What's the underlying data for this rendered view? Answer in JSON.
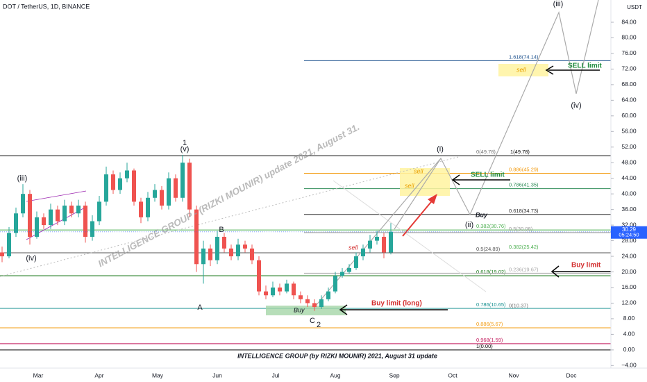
{
  "chart_data": {
    "type": "candlestick",
    "title": "DOT / TetherUS, 1D, BINANCE",
    "axis_unit": "USDT",
    "ylim": [
      -4.3,
      89.7
    ],
    "yticks": [
      {
        "value": -4,
        "label": "−4.00"
      },
      {
        "value": 0,
        "label": "0.00"
      },
      {
        "value": 4,
        "label": "4.00"
      },
      {
        "value": 8,
        "label": "8.00"
      },
      {
        "value": 12,
        "label": "12.00"
      },
      {
        "value": 16,
        "label": "16.00"
      },
      {
        "value": 20,
        "label": "20.00"
      },
      {
        "value": 24,
        "label": "24.00"
      },
      {
        "value": 28,
        "label": "28.00"
      },
      {
        "value": 32,
        "label": "32.00"
      },
      {
        "value": 36,
        "label": "36.00"
      },
      {
        "value": 40,
        "label": "40.00"
      },
      {
        "value": 44,
        "label": "44.00"
      },
      {
        "value": 48,
        "label": "48.00"
      },
      {
        "value": 52,
        "label": "52.00"
      },
      {
        "value": 56,
        "label": "56.00"
      },
      {
        "value": 60,
        "label": "60.00"
      },
      {
        "value": 64,
        "label": "64.00"
      },
      {
        "value": 68,
        "label": "68.00"
      },
      {
        "value": 72,
        "label": "72.00"
      },
      {
        "value": 76,
        "label": "76.00"
      },
      {
        "value": 80,
        "label": "80.00"
      },
      {
        "value": 84,
        "label": "84.00"
      }
    ],
    "months": [
      "Mar",
      "Apr",
      "May",
      "Jun",
      "Jul",
      "Aug",
      "Sep",
      "Oct",
      "Nov",
      "Dec"
    ],
    "up_color": "#26a69a",
    "down_color": "#ef5350",
    "open": [
      25,
      24,
      30,
      35,
      40,
      29,
      34,
      32,
      36,
      33,
      37,
      35,
      37,
      29,
      33,
      38,
      45,
      41,
      44,
      46,
      38,
      34,
      39,
      41,
      37,
      44,
      39,
      48,
      36,
      22,
      26,
      23,
      29,
      26,
      24,
      27,
      26,
      23,
      15,
      14,
      16,
      15,
      17,
      14,
      13,
      12,
      11,
      13,
      15,
      19,
      20,
      21,
      24,
      26,
      28,
      29,
      25
    ],
    "high": [
      26.5,
      31.5,
      36.5,
      42.5,
      41,
      35.5,
      35,
      37.5,
      37,
      38.5,
      38,
      38.5,
      38,
      34.5,
      39.5,
      47,
      46,
      45.5,
      48,
      46.5,
      39,
      40.5,
      42.5,
      42,
      45.5,
      45,
      50,
      49,
      37,
      28,
      27,
      30.5,
      30,
      27,
      28.5,
      28,
      27,
      24,
      16.5,
      17.5,
      17,
      18,
      17.5,
      15,
      14,
      13,
      14,
      16,
      20,
      21,
      22,
      25,
      27,
      29.5,
      30.5,
      30,
      32.5
    ],
    "low": [
      22.5,
      23.5,
      29,
      34,
      27,
      28.5,
      31,
      31,
      32,
      32,
      34,
      34,
      27.5,
      28,
      32,
      37,
      40,
      40,
      43,
      37,
      32.5,
      33,
      38,
      36,
      36,
      38,
      38,
      34,
      20,
      17,
      21.5,
      22,
      25,
      23,
      23,
      25,
      22,
      14,
      13,
      13.5,
      14,
      14.5,
      13,
      12,
      11,
      10,
      10.5,
      12.5,
      14.5,
      18.5,
      19.5,
      20.5,
      23,
      25,
      27,
      23.5,
      24.5
    ],
    "close": [
      24,
      30,
      35,
      40,
      29,
      34,
      32,
      36,
      33,
      37,
      35,
      37,
      29,
      33,
      38,
      45,
      41,
      44,
      46,
      38,
      34,
      39,
      41,
      37,
      44,
      39,
      48,
      36,
      22,
      26,
      23,
      29,
      26,
      24,
      27,
      26,
      23,
      15,
      14,
      16,
      15,
      17,
      14,
      13,
      12,
      11,
      13,
      15,
      19,
      20,
      21,
      24,
      26,
      28,
      29,
      25,
      30.29
    ],
    "last_price": 30.29,
    "countdown": "05:24:50",
    "levels": [
      {
        "label": "1.618(74.14)",
        "value": 74.14,
        "color": "#1a4f8c"
      },
      {
        "label": "0(49.78)",
        "value": 49.78,
        "color": "#777777"
      },
      {
        "label": "1(49.78)",
        "value": 49.78,
        "color": "#000000"
      },
      {
        "label": "0.886(45.29)",
        "value": 45.29,
        "color": "#f39c12"
      },
      {
        "label": "0.786(41.35)",
        "value": 41.35,
        "color": "#2e8b57"
      },
      {
        "label": "0.618(34.73)",
        "value": 34.73,
        "color": "#333333"
      },
      {
        "label": "0.382(30.76)",
        "value": 30.76,
        "color": "#4caf50"
      },
      {
        "label": "0.5(30.08)",
        "value": 30.08,
        "color": "#999999"
      },
      {
        "label": "0.5(24.89)",
        "value": 24.89,
        "color": "#555555"
      },
      {
        "label": "0.382(25.42)",
        "value": 25.42,
        "color": "#4caf50"
      },
      {
        "label": "0.618(19.02)",
        "value": 19.02,
        "color": "#1b7a1b"
      },
      {
        "label": "0.236(19.67)",
        "value": 19.67,
        "color": "#aaaaaa"
      },
      {
        "label": "0.786(10.65)",
        "value": 10.65,
        "color": "#138f8f"
      },
      {
        "label": "0(10.37)",
        "value": 10.37,
        "color": "#777777"
      },
      {
        "label": "0.886(5.67)",
        "value": 5.67,
        "color": "#f39c12"
      },
      {
        "label": "0.968(1.59)",
        "value": 1.59,
        "color": "#c2185b"
      },
      {
        "label": "1(0.00)",
        "value": 0,
        "color": "#000000"
      }
    ],
    "waves": [
      "(iii)",
      "(iv)",
      "1",
      "(v)",
      "B",
      "A",
      "C",
      "2",
      "(i)",
      "(ii)",
      "(iii)",
      "(iv)"
    ],
    "annotations": {
      "sell": "sell",
      "buy": "Buy",
      "sell_limit": "SELL limit",
      "buy_limit": "Buy limit",
      "buy_limit_long": "Buy limit (long)",
      "watermark": "INTELLIGENCE GROUP - (RIZKI MOUNIR) update 2021, August 31.",
      "footer": "INTELLIGENCE GROUP (by RIZKI MOUNIR) 2021, August 31 update"
    }
  }
}
